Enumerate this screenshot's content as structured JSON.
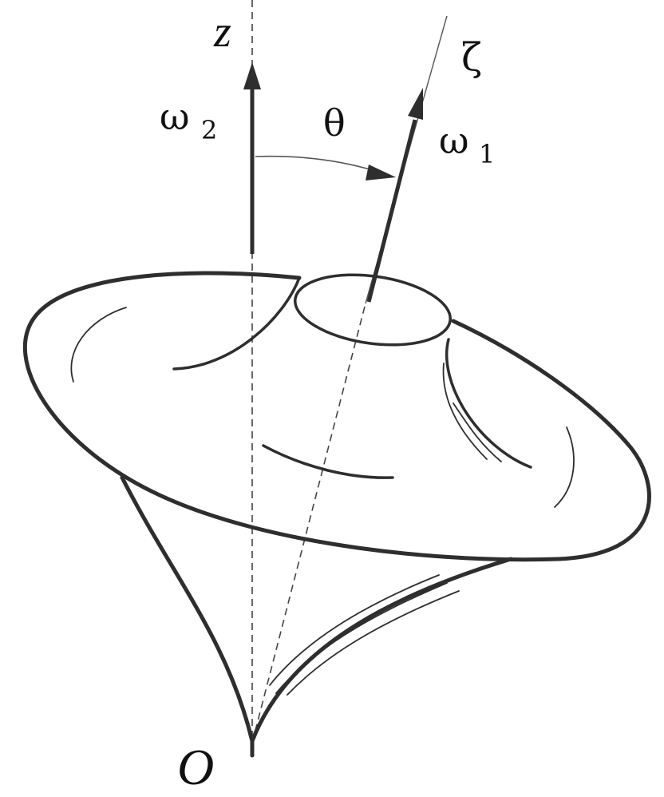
{
  "labels": {
    "z_axis": "z",
    "zeta_axis": "ζ",
    "omega2": "ω",
    "omega2_sub": "2",
    "omega1": "ω",
    "omega1_sub": "1",
    "theta": "θ",
    "origin": "O"
  }
}
